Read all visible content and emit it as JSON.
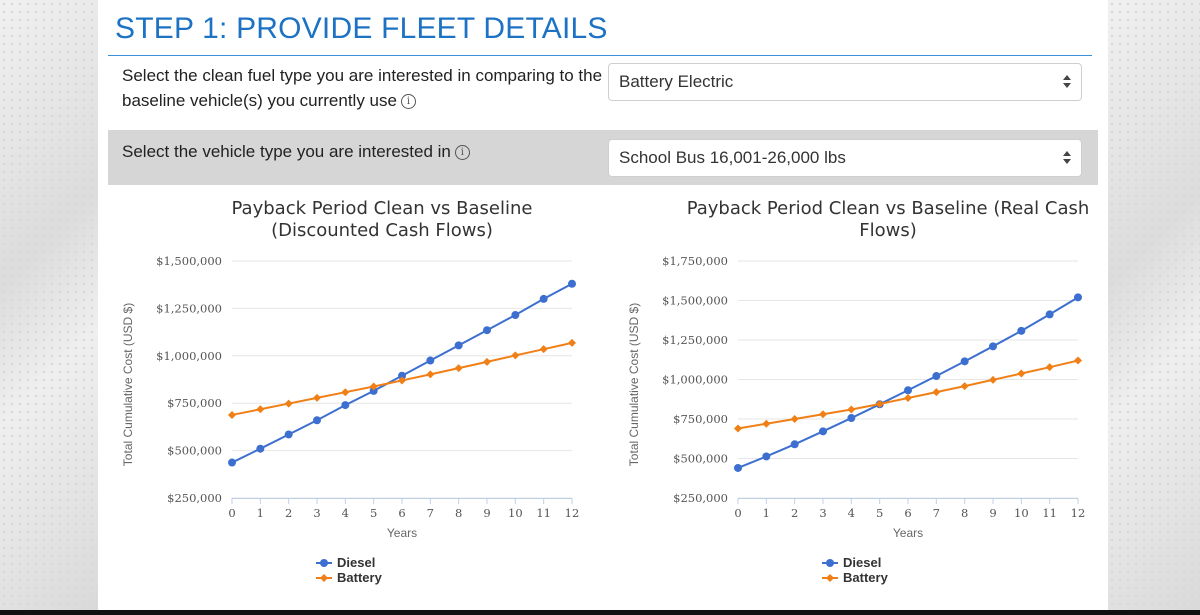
{
  "header": {
    "title": "STEP 1: PROVIDE FLEET DETAILS"
  },
  "fuel_row": {
    "label": "Select the clean fuel type you are interested in comparing to the baseline vehicle(s) you currently use",
    "info_icon": "info-icon",
    "selected": "Battery Electric"
  },
  "vehicle_row": {
    "label": "Select the vehicle type you are interested in",
    "info_icon": "info-icon",
    "selected": "School Bus 16,001-26,000 lbs"
  },
  "colors": {
    "diesel": "#3c6fd0",
    "battery": "#f07f16",
    "accent": "#1d72c4"
  },
  "chart_data": [
    {
      "type": "line",
      "title": [
        "Payback Period Clean vs Baseline",
        "(Discounted Cash Flows)"
      ],
      "xlabel": "Years",
      "ylabel": "Total Cumulative Cost (USD $)",
      "x": [
        0,
        1,
        2,
        3,
        4,
        5,
        6,
        7,
        8,
        9,
        10,
        11,
        12
      ],
      "ylim": [
        250000,
        1500000
      ],
      "yticks": [
        250000,
        500000,
        750000,
        1000000,
        1250000,
        1500000
      ],
      "ytick_labels": [
        "$250,000",
        "$500,000",
        "$750,000",
        "$1,000,000",
        "$1,250,000",
        "$1,500,000"
      ],
      "grid": true,
      "legend": "bottom-center",
      "series": [
        {
          "name": "Diesel",
          "color": "#3c6fd0",
          "marker": "circle",
          "values": [
            437000,
            510000,
            585000,
            660000,
            740000,
            815000,
            895000,
            975000,
            1055000,
            1135000,
            1215000,
            1300000,
            1380000
          ]
        },
        {
          "name": "Battery",
          "color": "#f07f16",
          "marker": "diamond",
          "values": [
            688000,
            718000,
            748000,
            778000,
            808000,
            838000,
            870000,
            902000,
            935000,
            968000,
            1002000,
            1035000,
            1068000
          ]
        }
      ]
    },
    {
      "type": "line",
      "title": [
        "Payback Period Clean vs Baseline (Real Cash",
        "Flows)"
      ],
      "xlabel": "Years",
      "ylabel": "Total Cumulative Cost (USD $)",
      "x": [
        0,
        1,
        2,
        3,
        4,
        5,
        6,
        7,
        8,
        9,
        10,
        11,
        12
      ],
      "ylim": [
        250000,
        1750000
      ],
      "yticks": [
        250000,
        500000,
        750000,
        1000000,
        1250000,
        1500000,
        1750000
      ],
      "ytick_labels": [
        "$250,000",
        "$500,000",
        "$750,000",
        "$1,000,000",
        "$1,250,000",
        "$1,500,000",
        "$1,750,000"
      ],
      "grid": true,
      "legend": "bottom-center",
      "series": [
        {
          "name": "Diesel",
          "color": "#3c6fd0",
          "marker": "circle",
          "values": [
            440000,
            513000,
            590000,
            672000,
            756000,
            843000,
            932000,
            1022000,
            1115000,
            1210000,
            1308000,
            1412000,
            1520000
          ]
        },
        {
          "name": "Battery",
          "color": "#f07f16",
          "marker": "diamond",
          "values": [
            690000,
            720000,
            750000,
            780000,
            810000,
            845000,
            883000,
            920000,
            958000,
            998000,
            1038000,
            1078000,
            1120000
          ]
        }
      ]
    }
  ]
}
